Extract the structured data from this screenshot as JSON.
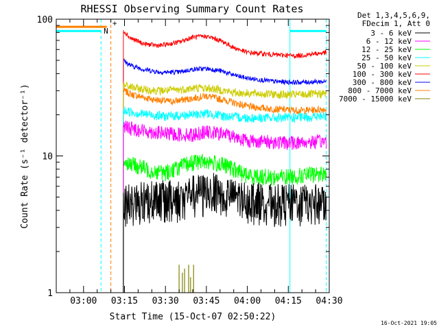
{
  "chart_data": {
    "type": "line",
    "title": "RHESSI Observing Summary Count Rates",
    "xlabel": "Start Time (15-Oct-07 02:50:22)",
    "ylabel": "Count Rate (s⁻¹ detector⁻¹)",
    "yscale": "log",
    "ylim": [
      1,
      100
    ],
    "xlim_minutes": [
      0,
      100
    ],
    "x_ticks": [
      {
        "t": 10,
        "label": "03:00"
      },
      {
        "t": 25,
        "label": "03:15"
      },
      {
        "t": 40,
        "label": "03:30"
      },
      {
        "t": 55,
        "label": "03:45"
      },
      {
        "t": 70,
        "label": "04:00"
      },
      {
        "t": 85,
        "label": "04:15"
      },
      {
        "t": 100,
        "label": "04:30"
      }
    ],
    "y_tick_labels": [
      {
        "value": 1,
        "label": "1"
      },
      {
        "value": 10,
        "label": "10"
      },
      {
        "value": 100,
        "label": "100"
      }
    ],
    "legend_header": [
      "Det 1,3,4,5,6,9,",
      "FDecim 1, Att 0"
    ],
    "data_start_minute": 24.6,
    "data_end_minute": 98.9,
    "series": [
      {
        "name": "3 - 6 keV",
        "color": "#000000",
        "envelope": [
          [
            24.6,
            4.8
          ],
          [
            30,
            5.0
          ],
          [
            45,
            5.2
          ],
          [
            50,
            5.6
          ],
          [
            58,
            5.8
          ],
          [
            65,
            5.2
          ],
          [
            80,
            4.8
          ],
          [
            98.9,
            4.8
          ]
        ],
        "noise": 0.3,
        "dropouts": true
      },
      {
        "name": "6 - 12 keV",
        "color": "#ff00ff",
        "envelope": [
          [
            24.6,
            16.5
          ],
          [
            27,
            16.0
          ],
          [
            35,
            15.0
          ],
          [
            42,
            14.5
          ],
          [
            50,
            14.3
          ],
          [
            54,
            15.0
          ],
          [
            62,
            14.5
          ],
          [
            70,
            13.0
          ],
          [
            85,
            12.5
          ],
          [
            98.9,
            12.8
          ]
        ],
        "noise": 0.12
      },
      {
        "name": "12 - 25 keV",
        "color": "#00ff00",
        "envelope": [
          [
            24.6,
            9.3
          ],
          [
            27,
            8.8
          ],
          [
            35,
            7.8
          ],
          [
            40,
            7.6
          ],
          [
            50,
            9.0
          ],
          [
            55,
            9.2
          ],
          [
            62,
            8.5
          ],
          [
            70,
            7.2
          ],
          [
            80,
            7.0
          ],
          [
            90,
            7.2
          ],
          [
            98.9,
            7.5
          ]
        ],
        "noise": 0.14
      },
      {
        "name": "25 - 50 keV",
        "color": "#00ffff",
        "envelope": [
          [
            24.6,
            21.5
          ],
          [
            30,
            20.5
          ],
          [
            40,
            19.5
          ],
          [
            50,
            20.0
          ],
          [
            55,
            20.5
          ],
          [
            62,
            19.5
          ],
          [
            70,
            19.0
          ],
          [
            85,
            19.0
          ],
          [
            98.9,
            19.5
          ]
        ],
        "noise": 0.08
      },
      {
        "name": "50 - 100 keV",
        "color": "#cccc00",
        "envelope": [
          [
            24.6,
            33.0
          ],
          [
            30,
            31.0
          ],
          [
            38,
            30.0
          ],
          [
            45,
            30.5
          ],
          [
            52,
            31.5
          ],
          [
            58,
            31.0
          ],
          [
            65,
            29.0
          ],
          [
            75,
            28.5
          ],
          [
            85,
            28.0
          ],
          [
            98.9,
            28.5
          ]
        ],
        "noise": 0.07
      },
      {
        "name": "100 - 300 keV",
        "color": "#ff0000",
        "envelope": [
          [
            24.6,
            83.0
          ],
          [
            27,
            73.0
          ],
          [
            32,
            66.0
          ],
          [
            38,
            64.0
          ],
          [
            45,
            68.0
          ],
          [
            50,
            74.0
          ],
          [
            55,
            75.0
          ],
          [
            60,
            70.0
          ],
          [
            65,
            62.0
          ],
          [
            70,
            57.0
          ],
          [
            80,
            55.0
          ],
          [
            88,
            54.0
          ],
          [
            98.9,
            57.0
          ]
        ],
        "noise": 0.04
      },
      {
        "name": "300 - 800 keV",
        "color": "#0000ff",
        "envelope": [
          [
            24.6,
            50.0
          ],
          [
            27,
            46.0
          ],
          [
            32,
            43.0
          ],
          [
            38,
            41.0
          ],
          [
            45,
            41.0
          ],
          [
            50,
            43.0
          ],
          [
            55,
            43.5
          ],
          [
            60,
            42.0
          ],
          [
            65,
            39.0
          ],
          [
            70,
            37.0
          ],
          [
            80,
            35.0
          ],
          [
            88,
            34.5
          ],
          [
            98.9,
            35.0
          ]
        ],
        "noise": 0.04
      },
      {
        "name": "800 - 7000 keV",
        "color": "#ff8000",
        "envelope": [
          [
            24.6,
            30.0
          ],
          [
            28,
            28.0
          ],
          [
            35,
            26.0
          ],
          [
            42,
            25.0
          ],
          [
            48,
            26.0
          ],
          [
            55,
            27.5
          ],
          [
            62,
            25.5
          ],
          [
            70,
            23.0
          ],
          [
            80,
            22.0
          ],
          [
            90,
            21.5
          ],
          [
            98.9,
            22.0
          ]
        ],
        "noise": 0.06
      },
      {
        "name": "7000 - 15000 keV",
        "color": "#808000",
        "envelope": [
          [
            24.6,
            1.0
          ],
          [
            98.9,
            1.0
          ]
        ],
        "noise": 0,
        "spikes": [
          [
            45.0,
            1.6
          ],
          [
            46.2,
            1.4
          ],
          [
            47.0,
            1.5
          ],
          [
            48.5,
            1.6
          ],
          [
            49.2,
            1.3
          ],
          [
            50.3,
            1.6
          ]
        ]
      }
    ],
    "annotations": {
      "attenuator_level_orange": {
        "color": "#ff8000",
        "from_minute": 0,
        "to_minute": 18.5,
        "value": 88
      },
      "attenuator_level_cyan": [
        {
          "color": "#00ffff",
          "from_minute": 0,
          "to_minute": 16.5,
          "value": 82
        },
        {
          "color": "#00ffff",
          "from_minute": 85.5,
          "to_minute": 98.9,
          "value": 82
        }
      ],
      "markers": [
        {
          "label": "N",
          "color": "#00ffff",
          "minute": 18.2,
          "value": 82
        },
        {
          "label": "+",
          "color": "#ff0000",
          "minute": 21.4,
          "value": 94
        }
      ],
      "vertical_lines": [
        {
          "minute": 16.4,
          "color": "#00ffff",
          "style": "dashed"
        },
        {
          "minute": 20.0,
          "color": "#ff8000",
          "style": "dashed"
        },
        {
          "minute": 85.6,
          "color": "#00ffff",
          "style": "solid"
        },
        {
          "minute": 98.9,
          "color": "#00ffff",
          "style": "dashed"
        }
      ]
    },
    "footer_timestamp": "16-Oct-2021 19:05"
  }
}
